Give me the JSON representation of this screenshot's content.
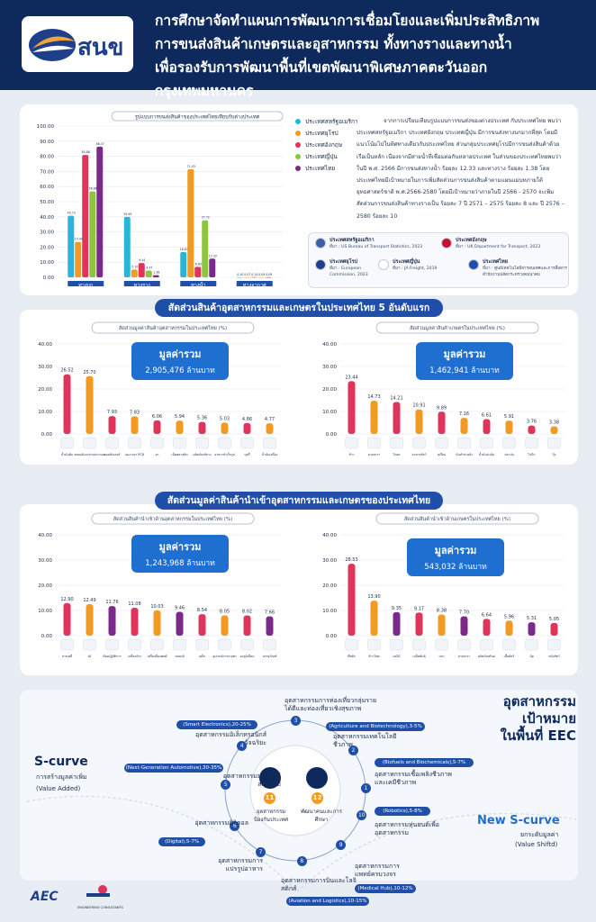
{
  "header": {
    "logo_text": "สนข",
    "title_line1": "การศึกษาจัดทำแผนการพัฒนาการเชื่อมโยงและเพิ่มประสิทธิภาพ",
    "title_line2": "การขนส่งสินค้าเกษตรและอุสาหกรรม ทั้งทางรางและทางน้ำ",
    "title_line3": "เพื่อรองรับการพัฒนาพื้นที่เขตพัฒนาพิเศษภาคตะวันออก กรุงเทพมหานคร"
  },
  "section1": {
    "chart_title": "รูปแบบการขนส่งสินค้าของประเทศไทยเทียบกับต่างประเทศ",
    "paragraph": "จากการเปรียบเทียบรูปแบบการขนส่งของต่างประเทศ กับประเทศไทย พบว่าประเทศสหรัฐอเมริกา ประเทศอังกฤษ ประเทศญี่ปุ่น มีการขนส่งทางบกมากที่สุด โดยมีแนวโน้มไปในทิศทางเดียวกับประเทศไทย ส่วนกลุ่มประเทศยุโรปมีการขนส่งสินค้าด้วยเรือเป็นหลัก เนื่องจากมีสายน้ำที่เชื่อมต่อกันหลายประเทศ ในส่วนของประเทศไทยพบว่าในปี พ.ศ. 2566 มีการขนส่งทางน้ำ ร้อยละ 12.33 และทางราง ร้อยละ 1.38 โดยประเทศไทยมีเป้าหมายในการเพิ่มสัดส่วนการขนส่งสินค้าตามแผนแม่บทภายใต้ยุทธศาสตร์ชาติ พ.ศ.2566-2580 โดยมีเป้าหมายว่าภายในปี 2566 - 2570 จะเพิ่มสัดส่วนการขนส่งสินค้าทางรางเป็น ร้อยละ 7 ปี 2571 – 2575 ร้อยละ 8 และ ปี 2576 – 2580 ร้อยละ 10",
    "sources": [
      {
        "name": "ประเทศสหรัฐอเมริกา",
        "ref": "ที่มา : US Bureau of Transport Statistics, 2023"
      },
      {
        "name": "ประเทศอังกฤษ",
        "ref": "ที่มา : UK Department for Transport, 2023"
      },
      {
        "name": "ประเทศยุโรป",
        "ref": "ที่มา : European Commission, 2023"
      },
      {
        "name": "ประเทศญี่ปุ่น",
        "ref": "ที่มา : JA Freight, 2019"
      },
      {
        "name": "ประเทศไทย",
        "ref": "ที่มา : ศูนย์เทคโนโลยีสารสนเทศและการสื่อสาร สำนักงานปลัดกระทรวงคมนาคม"
      }
    ]
  },
  "section2": {
    "heading": "สัดส่วนสินค้าอุตสาหกรรมและเกษตรในประเทศไทย 5 อันดับแรก"
  },
  "section3": {
    "heading": "สัดส่วนมูลค่าสินค้านำเข้าอุตสาหกรรมและเกษตรของประเทศไทย"
  },
  "totals": {
    "label": "มูลค่ารวม",
    "t1": "2,905,476 ล้านบาท",
    "t2": "1,462,941 ล้านบาท",
    "t3": "1,243,968 ล้านบาท",
    "t4": "543,032 ล้านบาท"
  },
  "chart_data": [
    {
      "type": "bar",
      "title": "รูปแบบการขนส่งสินค้าของประเทศไทยเทียบกับต่างประเทศ",
      "categories": [
        "ทางบก",
        "ทางราง",
        "ทางน้ำ",
        "ทางอากาศ"
      ],
      "ylim": [
        0,
        100
      ],
      "yticks": [
        "0.00",
        "10.00",
        "20.00",
        "30.00",
        "40.00",
        "50.00",
        "60.00",
        "70.00",
        "80.00",
        "90.00",
        "100.00"
      ],
      "colors": [
        "#2bb4d9",
        "#f29a22",
        "#e0345a",
        "#8cc63f",
        "#7b2a8c"
      ],
      "series": [
        {
          "name": "ประเทศสหรัฐอเมริกา",
          "values": [
            40.73,
            39.99,
            16.67,
            0.1
          ]
        },
        {
          "name": "ประเทศยุโรป",
          "values": [
            23.44,
            5.1,
            71.43,
            0.07
          ]
        },
        {
          "name": "ประเทศอังกฤษ",
          "values": [
            80.88,
            9.44,
            6.89,
            0.14
          ]
        },
        {
          "name": "ประเทศญี่ปุ่น",
          "values": [
            56.86,
            4.47,
            37.72,
            0.09
          ]
        },
        {
          "name": "ประเทศไทย",
          "values": [
            86.37,
            1.38,
            12.33,
            0.09
          ]
        }
      ]
    },
    {
      "type": "bar",
      "title": "สัดส่วนมูลค่าสินค้าอุตสาหกรรมในประเทศไทย (%)",
      "categories": [
        "น้ำมันดิบ",
        "รถยนต์และส่วนประกอบ",
        "คอมพิวเตอร์",
        "แผงวงจร PCB",
        "ยา",
        "เม็ดพลาสติก",
        "ผลิตภัณฑ์ยาง",
        "อาหารสำเร็จรูป",
        "บุหรี่",
        "น้ำมันเครื่อง"
      ],
      "values": [
        26.52,
        25.7,
        7.93,
        7.83,
        6.06,
        5.94,
        5.36,
        5.03,
        4.86,
        4.77
      ],
      "value_labels": [
        "26.52",
        "25.70",
        "7.93",
        "7.83",
        "6.06",
        "5.94",
        "5.36",
        "5.03",
        "4.86",
        "4.77"
      ],
      "colors": [
        "#e0345a",
        "#f29a22",
        "#e0345a",
        "#f29a22",
        "#e0345a",
        "#f29a22",
        "#e0345a",
        "#f29a22",
        "#e0345a",
        "#f29a22"
      ],
      "ylim": [
        0,
        40
      ],
      "yticks": [
        "0.00",
        "10.00",
        "20.00",
        "30.00",
        "40.00"
      ]
    },
    {
      "type": "bar",
      "title": "สัดส่วนมูลค่าสินค้าเกษตรในประเทศไทย (%)",
      "categories": [
        "ข้าว",
        "ยางพารา",
        "ไก่สด",
        "อาหารสัตว์",
        "ทุเรียน",
        "มันสำปะหลัง",
        "น้ำมันปาล์ม",
        "ปลาป่น",
        "ไข่ไก่",
        "กุ้ง"
      ],
      "values": [
        23.44,
        14.73,
        14.21,
        10.91,
        9.89,
        7.16,
        6.61,
        5.91,
        3.76,
        3.38
      ],
      "value_labels": [
        "23.44",
        "14.73",
        "14.21",
        "10.91",
        "9.89",
        "7.16",
        "6.61",
        "5.91",
        "3.76",
        "3.38"
      ],
      "colors": [
        "#e0345a",
        "#f29a22",
        "#e0345a",
        "#f29a22",
        "#e0345a",
        "#f29a22",
        "#e0345a",
        "#f29a22",
        "#e0345a",
        "#f29a22"
      ],
      "ylim": [
        0,
        40
      ],
      "yticks": [
        "0.00",
        "10.00",
        "20.00",
        "30.00",
        "40.00"
      ]
    },
    {
      "type": "bar",
      "title": "สัดส่วนสินค้านำเข้าด้านอุตสาหกรรมในประเทศไทย (%)",
      "categories": [
        "สารเคมี",
        "AI",
        "ห้องปฏิบัติการ",
        "เครื่องจักร",
        "เครื่องมือแพทย์",
        "รถยนต์",
        "เหล็ก",
        "อุปกรณ์การเกษตร",
        "อะลูมิเนียม",
        "บรรจุภัณฑ์"
      ],
      "values": [
        12.9,
        12.49,
        11.76,
        11.08,
        10.03,
        9.46,
        8.54,
        8.05,
        8.02,
        7.66
      ],
      "value_labels": [
        "12.90",
        "12.49",
        "11.76",
        "11.08",
        "10.03",
        "9.46",
        "8.54",
        "8.05",
        "8.02",
        "7.66"
      ],
      "colors": [
        "#e0345a",
        "#f29a22",
        "#7b2a8c",
        "#e0345a",
        "#f29a22",
        "#7b2a8c",
        "#e0345a",
        "#f29a22",
        "#e0345a",
        "#7b2a8c"
      ],
      "ylim": [
        0,
        40
      ],
      "yticks": [
        "0.00",
        "10.00",
        "20.00",
        "30.00",
        "40.00"
      ]
    },
    {
      "type": "bar",
      "title": "สัดส่วนสินค้านำเข้าด้านเกษตรในประเทศไทย (%)",
      "categories": [
        "พืชผัก",
        "ข้าวโพด",
        "ผลไม้",
        "เมล็ดพันธุ์",
        "ปลา",
        "ยางพารา",
        "ผลิตภัณฑ์นม",
        "เนื้อสัตว์",
        "ปุ๋ย",
        "หนังสัตว์"
      ],
      "values": [
        28.53,
        13.9,
        9.35,
        9.17,
        8.38,
        7.7,
        6.64,
        5.96,
        5.31,
        5.05
      ],
      "value_labels": [
        "28.53",
        "13.90",
        "9.35",
        "9.17",
        "8.38",
        "7.70",
        "6.64",
        "5.96",
        "5.31",
        "5.05"
      ],
      "colors": [
        "#e0345a",
        "#f29a22",
        "#7b2a8c",
        "#e0345a",
        "#f29a22",
        "#7b2a8c",
        "#e0345a",
        "#f29a22",
        "#7b2a8c",
        "#e0345a"
      ],
      "ylim": [
        0,
        40
      ],
      "yticks": [
        "0.00",
        "10.00",
        "20.00",
        "30.00",
        "40.00"
      ]
    }
  ],
  "scurve": {
    "eec_title_1": "อุตสาหกรรม",
    "eec_title_2": "เป้าหมาย",
    "eec_title_3": "ในพื้นที่ EEC",
    "left_title": "S-curve",
    "left_sub1": "การสร้างมูลค่าเพิ่ม",
    "left_sub2": "(Value Added)",
    "right_title": "New S-curve",
    "right_sub1": "ยกระดับมูลค่า",
    "right_sub2": "(Value Shiftd)",
    "center_left": "อุตสาหกรรมป้องกันประเทศ",
    "center_right": "พัฒนาคนและการศึกษา",
    "center_left_num": "11",
    "center_right_num": "12",
    "nodes": [
      {
        "num": "1",
        "label": "อุตสาหกรรมยานยนต์สมัยใหม่",
        "tag": "(Next-Generation Automotive),30-35%"
      },
      {
        "num": "2",
        "label": "อุตสาหกรรมอิเล็กทรอนิกส์อัจฉริยะ",
        "tag": "(Smart Electronics),20-25%"
      },
      {
        "num": "3",
        "label": "อุตสาหกรรมการท่องเที่ยวกลุ่มรายได้ดีและท่องเที่ยวเชิงสุขภาพ",
        "tag": ""
      },
      {
        "num": "4",
        "label": "อุตสาหกรรมเทคโนโลยีชีวภาพ",
        "tag": "(Agriculture and Biotechnology),3-5%"
      },
      {
        "num": "5",
        "label": "อุตสาหกรรมเชื้อเพลิงชีวภาพและเคมีชีวภาพ",
        "tag": "(Biofuels and Biochemicals),5-7%"
      },
      {
        "num": "6",
        "label": "อุตสาหกรรมหุ่นยนต์เพื่ออุตสาหกรรม",
        "tag": "(Robotics),5-8%"
      },
      {
        "num": "7",
        "label": "อุตสาหกรรมการแพทย์ครบวงจร",
        "tag": "(Medical Hub),10-12%"
      },
      {
        "num": "8",
        "label": "อุตสาหกรรมการบินและโลจิสติกส์",
        "tag": "(Aviation and Logistics),10-15%"
      },
      {
        "num": "9",
        "label": "อุตสาหกรรมการแปรรูปอาหาร",
        "tag": ""
      },
      {
        "num": "10",
        "label": "อุตสาหกรรมดิจิตอล",
        "tag": "(Digital),5-7%"
      }
    ]
  },
  "footer": {
    "aec_logo": "AEC",
    "partner_logo": "ENGINEERING CONSULTANTS"
  }
}
